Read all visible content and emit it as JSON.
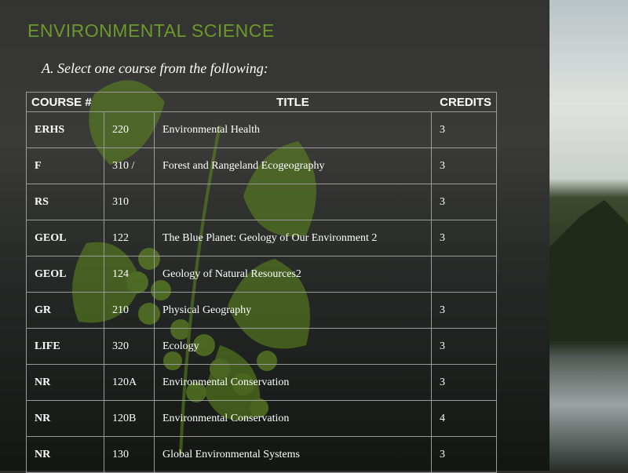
{
  "heading": "ENVIRONMENTAL SCIENCE",
  "instruction": "A. Select one course from the following:",
  "table": {
    "headers": {
      "course": "COURSE #",
      "title": "TITLE",
      "credits": "CREDITS"
    },
    "rows": [
      {
        "dept": "ERHS",
        "num": "220",
        "title": "Environmental Health",
        "credits": "3"
      },
      {
        "dept": "F",
        "num": "310 /",
        "title": "Forest and Rangeland Ecogeography",
        "credits": "3"
      },
      {
        "dept": "RS",
        "num": "310",
        "title": "",
        "credits": "3"
      },
      {
        "dept": "GEOL",
        "num": "122",
        "title": "The Blue Planet: Geology of Our Environment 2",
        "credits": "3"
      },
      {
        "dept": "GEOL",
        "num": "124",
        "title": "Geology of Natural Resources2",
        "credits": ""
      },
      {
        "dept": "GR",
        "num": "210",
        "title": "Physical Geography",
        "credits": "3"
      },
      {
        "dept": "LIFE",
        "num": "320",
        "title": "Ecology",
        "credits": "3"
      },
      {
        "dept": "NR",
        "num": "120A",
        "title": "Environmental Conservation",
        "credits": "3"
      },
      {
        "dept": "NR",
        "num": "120B",
        "title": "Environmental Conservation",
        "credits": "4"
      },
      {
        "dept": "NR",
        "num": "130",
        "title": "Global Environmental Systems",
        "credits": "3"
      }
    ]
  },
  "colors": {
    "heading": "#6b9a2a",
    "panel": "#333331"
  }
}
